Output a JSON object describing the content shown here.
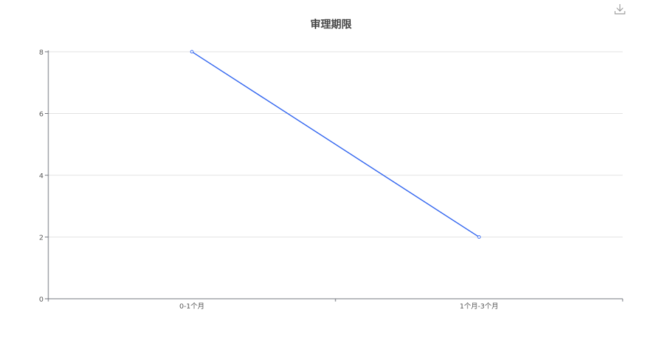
{
  "toolbar": {
    "download_icon": "download-icon"
  },
  "chart_data": {
    "type": "line",
    "title": "审理期限",
    "categories": [
      "0-1个月",
      "1个月-3个月"
    ],
    "series": [
      {
        "values": [
          8,
          2
        ]
      }
    ],
    "ylim": [
      0,
      8
    ],
    "yticks": [
      "0",
      "2",
      "4",
      "6",
      "8"
    ],
    "grid": true,
    "colors": {
      "line": "#3b6cf0",
      "grid": "#e0e0e0",
      "axis": "#6e7079",
      "label": "#555555"
    }
  }
}
